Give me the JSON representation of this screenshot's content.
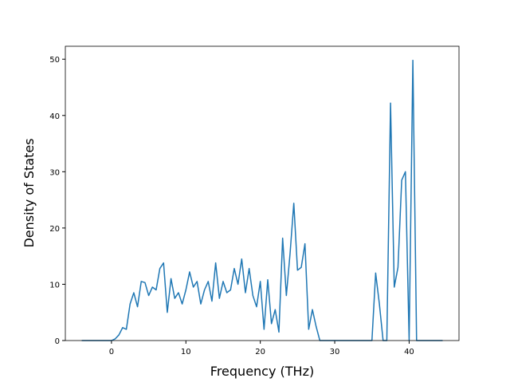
{
  "chart_data": {
    "type": "line",
    "xlabel": "Frequency (THz)",
    "ylabel": "Density of States",
    "x": [
      -4,
      -3.5,
      -3,
      -2.5,
      -2,
      -1.5,
      -1,
      -0.5,
      0,
      0.5,
      1,
      1.5,
      2,
      2.5,
      3,
      3.5,
      4,
      4.5,
      5,
      5.5,
      6,
      6.5,
      7,
      7.5,
      8,
      8.5,
      9,
      9.5,
      10,
      10.5,
      11,
      11.5,
      12,
      12.5,
      13,
      13.5,
      14,
      14.5,
      15,
      15.5,
      16,
      16.5,
      17,
      17.5,
      18,
      18.5,
      19,
      19.5,
      20,
      20.5,
      21,
      21.5,
      22,
      22.5,
      23,
      23.5,
      24,
      24.5,
      25,
      25.5,
      26,
      26.5,
      27,
      27.5,
      28,
      28.5,
      29,
      29.5,
      30,
      30.5,
      31,
      31.5,
      32,
      32.5,
      33,
      33.5,
      34,
      34.5,
      35,
      35.5,
      36,
      36.5,
      37,
      37.5,
      38,
      38.5,
      39,
      39.5,
      40,
      40.5,
      41,
      41.5,
      42,
      42.5,
      43,
      43.5,
      44,
      44.5
    ],
    "series": [
      {
        "color": "#1f77b4",
        "values": [
          0,
          0,
          0,
          0,
          0,
          0,
          0,
          0,
          0,
          0.3,
          1,
          2.3,
          2,
          6.5,
          8.5,
          6,
          10.5,
          10.3,
          8,
          9.5,
          9,
          12.8,
          13.8,
          5,
          11,
          7.5,
          8.5,
          6.5,
          9,
          12.2,
          9.5,
          10.5,
          6.5,
          9,
          10.5,
          7,
          13.8,
          7.5,
          10.5,
          8.5,
          9,
          12.8,
          10,
          14.5,
          8.5,
          12.8,
          8,
          6,
          10.5,
          2,
          10.8,
          3,
          5.5,
          1.5,
          18.2,
          8,
          15.5,
          24.4,
          12.5,
          13,
          17.2,
          2,
          5.5,
          2.5,
          0,
          0,
          0,
          0,
          0,
          0,
          0,
          0,
          0,
          0,
          0,
          0,
          0,
          0,
          0,
          12,
          6.5,
          0,
          0,
          42.2,
          9.5,
          13,
          28.5,
          30,
          0,
          49.8,
          0,
          0,
          0,
          0,
          0,
          0,
          0,
          0
        ]
      }
    ],
    "xlim": [
      -6.2,
      46.7
    ],
    "ylim": [
      0,
      52.3
    ],
    "xticks": [
      0,
      10,
      20,
      30,
      40
    ],
    "yticks": [
      0,
      10,
      20,
      30,
      40,
      50
    ]
  }
}
